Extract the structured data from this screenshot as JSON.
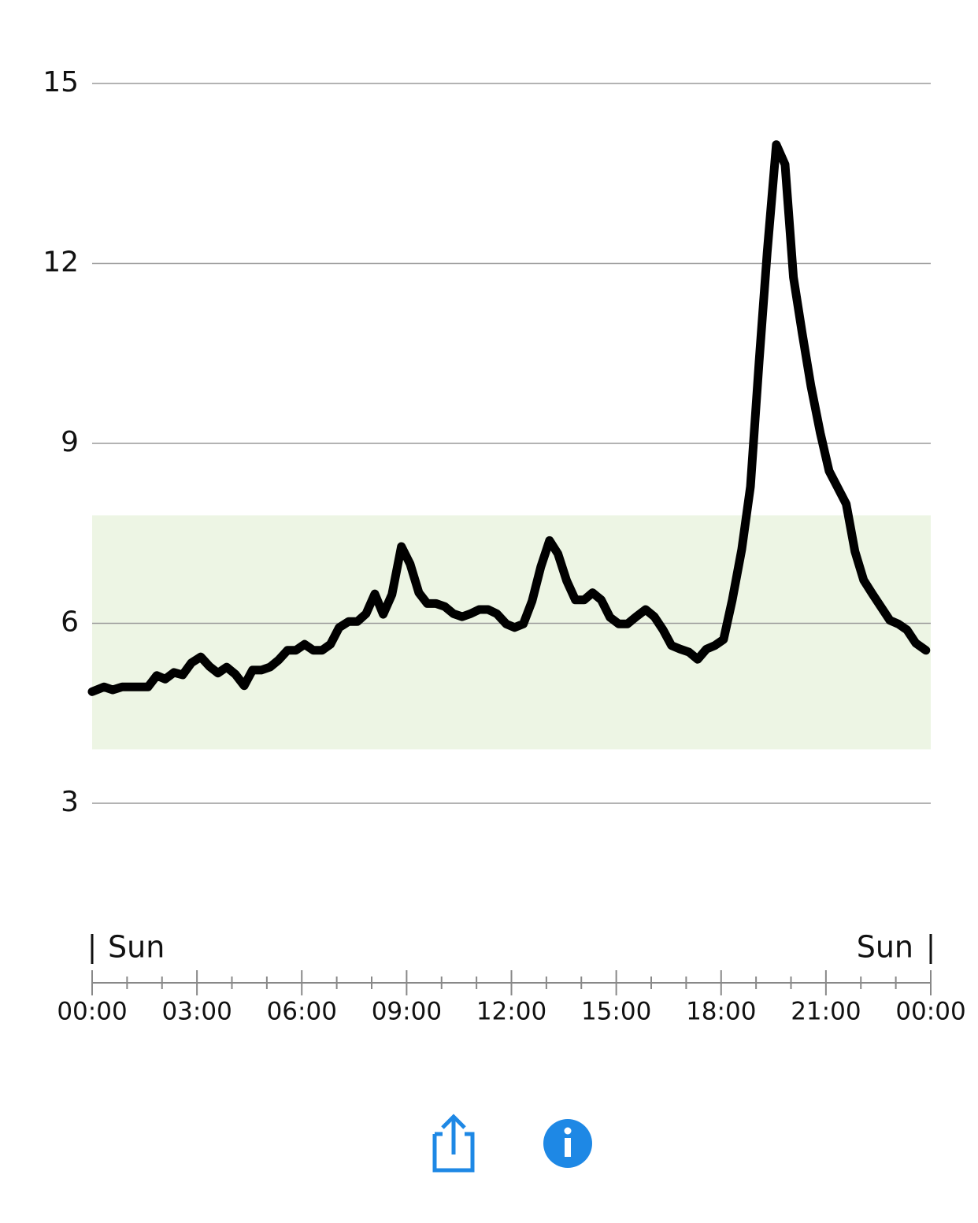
{
  "chart_data": {
    "type": "line",
    "x": [
      0,
      0.34,
      0.59,
      0.86,
      1.6,
      1.85,
      2.09,
      2.34,
      2.59,
      2.84,
      3.11,
      3.36,
      3.6,
      3.85,
      4.1,
      4.35,
      4.59,
      4.84,
      5.09,
      5.34,
      5.59,
      5.83,
      6.08,
      6.33,
      6.58,
      6.82,
      7.07,
      7.34,
      7.59,
      7.84,
      8.09,
      8.33,
      8.58,
      8.85,
      9.1,
      9.35,
      9.59,
      9.84,
      10.09,
      10.34,
      10.59,
      10.83,
      11.08,
      11.33,
      11.58,
      11.85,
      12.09,
      12.34,
      12.59,
      12.84,
      13.09,
      13.33,
      13.58,
      13.83,
      14.08,
      14.32,
      14.57,
      14.82,
      15.07,
      15.32,
      15.57,
      15.84,
      16.09,
      16.34,
      16.58,
      16.83,
      17.08,
      17.33,
      17.58,
      17.82,
      18.07,
      18.32,
      18.59,
      18.84,
      19.09,
      19.32,
      19.58,
      19.83,
      20.07,
      20.32,
      20.57,
      20.84,
      21.09,
      21.34,
      21.58,
      21.83,
      22.08,
      22.33,
      22.58,
      22.83,
      23.07,
      23.32,
      23.57,
      23.86
    ],
    "values": [
      4.86,
      4.94,
      4.89,
      4.94,
      4.94,
      5.13,
      5.07,
      5.18,
      5.14,
      5.34,
      5.44,
      5.28,
      5.17,
      5.27,
      5.15,
      4.96,
      5.22,
      5.22,
      5.27,
      5.39,
      5.55,
      5.55,
      5.65,
      5.55,
      5.55,
      5.65,
      5.93,
      6.03,
      6.03,
      6.16,
      6.49,
      6.15,
      6.48,
      7.28,
      6.99,
      6.51,
      6.33,
      6.33,
      6.28,
      6.16,
      6.11,
      6.16,
      6.23,
      6.23,
      6.16,
      5.99,
      5.93,
      5.99,
      6.37,
      6.94,
      7.38,
      7.16,
      6.71,
      6.39,
      6.39,
      6.51,
      6.39,
      6.1,
      5.99,
      5.99,
      6.11,
      6.23,
      6.11,
      5.89,
      5.63,
      5.57,
      5.52,
      5.4,
      5.57,
      5.63,
      5.73,
      6.39,
      7.23,
      8.28,
      10.38,
      12.19,
      13.98,
      13.65,
      11.77,
      10.84,
      9.96,
      9.17,
      8.54,
      8.26,
      7.99,
      7.2,
      6.72,
      6.49,
      6.27,
      6.05,
      5.99,
      5.89,
      5.67,
      5.55
    ],
    "color": "#000000",
    "target_range": [
      3.9,
      7.8
    ],
    "target_color": "#edf5e4",
    "ylim": [
      3,
      15
    ],
    "yticks": [
      3,
      6,
      9,
      12,
      15
    ],
    "grid": true,
    "xlim": [
      0,
      24
    ],
    "xticks": [
      {
        "value": 0,
        "label": "00:00"
      },
      {
        "value": 3,
        "label": "03:00"
      },
      {
        "value": 6,
        "label": "06:00"
      },
      {
        "value": 9,
        "label": "09:00"
      },
      {
        "value": 12,
        "label": "12:00"
      },
      {
        "value": 15,
        "label": "15:00"
      },
      {
        "value": 18,
        "label": "18:00"
      },
      {
        "value": 21,
        "label": "21:00"
      },
      {
        "value": 24,
        "label": "00:00"
      }
    ],
    "xminorticks": [
      1,
      2,
      4,
      5,
      7,
      8,
      10,
      11,
      13,
      14,
      16,
      17,
      19,
      20,
      22,
      23
    ],
    "start_label": "Sun",
    "end_label": "Sun"
  }
}
